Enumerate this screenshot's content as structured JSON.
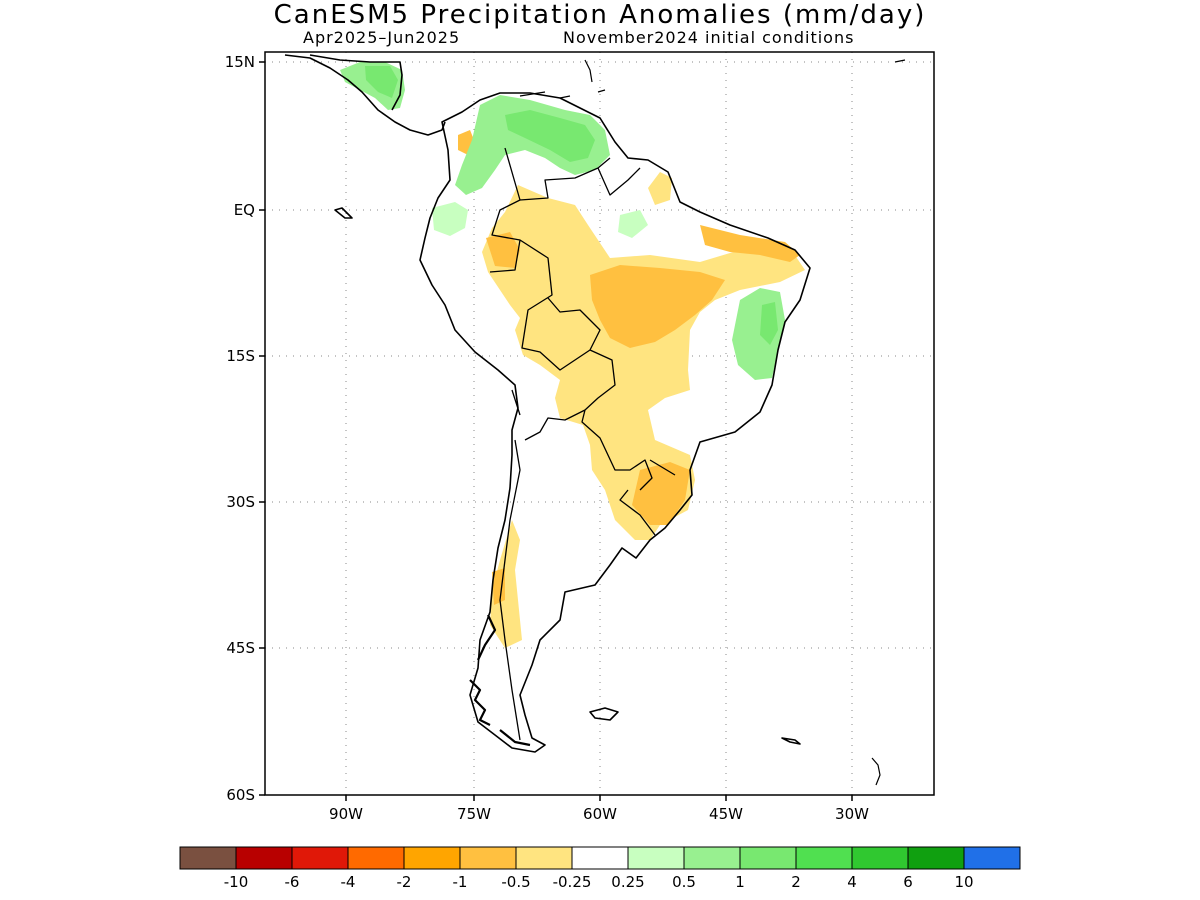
{
  "title": "CanESM5 Precipitation Anomalies (mm/day)",
  "subtitle_left": "Apr2025–Jun2025",
  "subtitle_right": "November2024 initial conditions",
  "map": {
    "lat_ticks": [
      "15N",
      "EQ",
      "15S",
      "30S",
      "45S",
      "60S"
    ],
    "lon_ticks": [
      "90W",
      "75W",
      "60W",
      "45W",
      "30W"
    ],
    "grid": "dotted"
  },
  "colorbar": {
    "colors": [
      "#7a5040",
      "#b80000",
      "#e01808",
      "#ff6a00",
      "#ffa500",
      "#ffc040",
      "#ffe480",
      "#ffffff",
      "#c8ffc0",
      "#98f090",
      "#78e870",
      "#50e050",
      "#30c830",
      "#10a010",
      "#2070e8"
    ],
    "tick_labels": [
      "-10",
      "-6",
      "-4",
      "-2",
      "-1",
      "-0.5",
      "-0.25",
      "0.25",
      "0.5",
      "1",
      "2",
      "4",
      "6",
      "10"
    ]
  }
}
